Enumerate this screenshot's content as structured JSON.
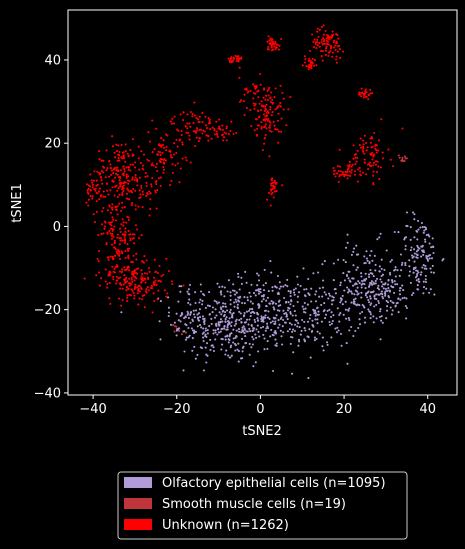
{
  "chart_data": {
    "type": "scatter",
    "title": "",
    "xlabel": "tSNE2",
    "ylabel": "tSNE1",
    "xlim": [
      -46,
      47
    ],
    "ylim": [
      -40.5,
      52
    ],
    "xticks": [
      -40,
      -20,
      0,
      20,
      40
    ],
    "yticks": [
      -40,
      -20,
      0,
      20,
      40
    ],
    "xtick_labels": [
      "−40",
      "−20",
      "0",
      "20",
      "40"
    ],
    "ytick_labels": [
      "−40",
      "−20",
      "0",
      "20",
      "40"
    ],
    "grid": false,
    "legend_placement": "bottom-center, outside plot area",
    "background": "#000000",
    "foreground": "#ffffff",
    "series": [
      {
        "name": "Olfactory epithelial cells (n=1095)",
        "color": "#b19cd9",
        "count": 1095,
        "clusters": [
          {
            "cx": -9,
            "cy": -23,
            "sx": 6,
            "sy": 5,
            "n": 330
          },
          {
            "cx": 3,
            "cy": -21,
            "sx": 5,
            "sy": 5,
            "n": 200
          },
          {
            "cx": 14,
            "cy": -21,
            "sx": 5,
            "sy": 4,
            "n": 160
          },
          {
            "cx": 25,
            "cy": -14,
            "sx": 4,
            "sy": 5,
            "n": 170
          },
          {
            "cx": 31,
            "cy": -16,
            "sx": 3,
            "sy": 3,
            "n": 80
          },
          {
            "cx": 38,
            "cy": -7,
            "sx": 2.5,
            "sy": 5,
            "n": 130
          },
          {
            "cx": -17,
            "cy": -19,
            "sx": 2,
            "sy": 3,
            "n": 25
          }
        ]
      },
      {
        "name": "Smooth muscle cells (n=19)",
        "color": "#c0343c",
        "count": 19,
        "clusters": [
          {
            "cx": 34,
            "cy": 16,
            "sx": 0.6,
            "sy": 0.7,
            "n": 12
          },
          {
            "cx": -20,
            "cy": -25,
            "sx": 1.5,
            "sy": 1,
            "n": 7
          }
        ]
      },
      {
        "name": "Unknown (n=1262)",
        "color": "#ff0000",
        "count": 1262,
        "clusters": [
          {
            "cx": -34,
            "cy": 13,
            "sx": 2.5,
            "sy": 4,
            "n": 150
          },
          {
            "cx": -34,
            "cy": -2,
            "sx": 2.5,
            "sy": 5,
            "n": 150
          },
          {
            "cx": -32,
            "cy": -12,
            "sx": 3,
            "sy": 3,
            "n": 110
          },
          {
            "cx": -27,
            "cy": -14,
            "sx": 3,
            "sy": 2.5,
            "n": 80
          },
          {
            "cx": -40,
            "cy": 9,
            "sx": 1,
            "sy": 1.5,
            "n": 30
          },
          {
            "cx": -28,
            "cy": 10,
            "sx": 2.5,
            "sy": 3,
            "n": 70
          },
          {
            "cx": -23,
            "cy": 18,
            "sx": 2.5,
            "sy": 3,
            "n": 70
          },
          {
            "cx": -16,
            "cy": 24,
            "sx": 2.5,
            "sy": 2,
            "n": 70
          },
          {
            "cx": -9,
            "cy": 23,
            "sx": 2,
            "sy": 2,
            "n": 30
          },
          {
            "cx": -6,
            "cy": 40,
            "sx": 0.8,
            "sy": 0.7,
            "n": 30
          },
          {
            "cx": -2,
            "cy": 32,
            "sx": 1.5,
            "sy": 2,
            "n": 30
          },
          {
            "cx": 2,
            "cy": 27,
            "sx": 1.8,
            "sy": 3.5,
            "n": 110
          },
          {
            "cx": 3,
            "cy": 44,
            "sx": 0.8,
            "sy": 0.9,
            "n": 35
          },
          {
            "cx": 3,
            "cy": 9,
            "sx": 0.8,
            "sy": 1.5,
            "n": 30
          },
          {
            "cx": 16,
            "cy": 44,
            "sx": 2,
            "sy": 1.8,
            "n": 90
          },
          {
            "cx": 12,
            "cy": 39,
            "sx": 0.8,
            "sy": 0.8,
            "n": 25
          },
          {
            "cx": 25,
            "cy": 32,
            "sx": 0.8,
            "sy": 0.7,
            "n": 25
          },
          {
            "cx": 26,
            "cy": 17,
            "sx": 2.2,
            "sy": 3,
            "n": 85
          },
          {
            "cx": 20,
            "cy": 13,
            "sx": 2,
            "sy": 0.9,
            "n": 42
          }
        ]
      }
    ]
  }
}
